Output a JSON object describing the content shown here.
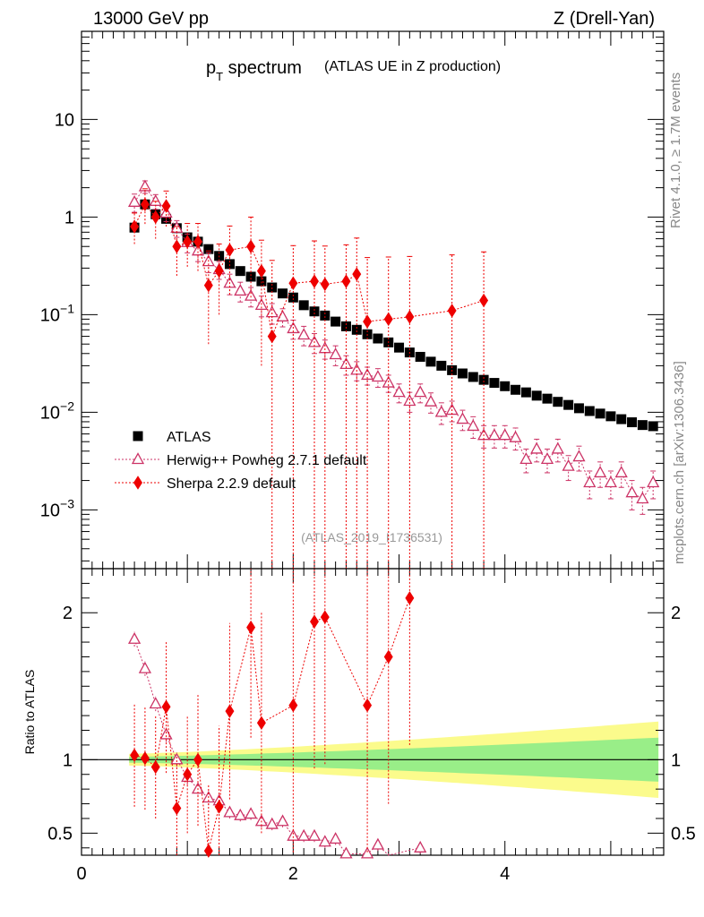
{
  "header": {
    "left": "13000 GeV pp",
    "right": "Z (Drell-Yan)"
  },
  "title": {
    "main_p": "p",
    "main_sub": "T",
    "main_rest": " spectrum",
    "paren": "(ATLAS UE in Z production)"
  },
  "side": {
    "rivet": "Rivet 4.1.0, ≥ 1.7M events",
    "mcplots": "mcplots.cern.ch [arXiv:1306.3436]"
  },
  "watermark": "(ATLAS_2019_I1736531)",
  "ratio_ylabel": "Ratio to ATLAS",
  "legend": [
    {
      "label": "ATLAS",
      "color": "#000000",
      "marker": "square"
    },
    {
      "label": "Herwig++ Powheg 2.7.1 default",
      "color": "#cc3366",
      "marker": "open-triangle"
    },
    {
      "label": "Sherpa 2.2.9 default",
      "color": "#ee0000",
      "marker": "diamond"
    }
  ],
  "chart_data": [
    {
      "type": "scatter",
      "title": "pT spectrum (ATLAS UE in Z production)",
      "xlabel": "",
      "ylabel": "",
      "yscale": "log",
      "xlim": [
        0,
        5.5
      ],
      "ylim": [
        0.00025,
        80
      ],
      "x_ticks": [
        "0",
        "2",
        "4"
      ],
      "y_ticks": [
        "10^-3",
        "10^-2",
        "10^-1",
        "1",
        "10"
      ],
      "series": [
        {
          "name": "ATLAS",
          "x": [
            0.5,
            0.6,
            0.7,
            0.8,
            0.9,
            1.0,
            1.1,
            1.2,
            1.3,
            1.4,
            1.5,
            1.6,
            1.7,
            1.8,
            1.9,
            2.0,
            2.1,
            2.2,
            2.3,
            2.4,
            2.5,
            2.6,
            2.7,
            2.8,
            2.9,
            3.0,
            3.1,
            3.2,
            3.3,
            3.4,
            3.5,
            3.6,
            3.7,
            3.8,
            3.9,
            4.0,
            4.1,
            4.2,
            4.3,
            4.4,
            4.5,
            4.6,
            4.7,
            4.8,
            4.9,
            5.0,
            5.1,
            5.2,
            5.3,
            5.4
          ],
          "y": [
            0.78,
            1.35,
            1.07,
            0.96,
            0.77,
            0.62,
            0.56,
            0.47,
            0.4,
            0.33,
            0.28,
            0.245,
            0.22,
            0.19,
            0.165,
            0.15,
            0.125,
            0.108,
            0.098,
            0.085,
            0.076,
            0.07,
            0.063,
            0.057,
            0.052,
            0.046,
            0.041,
            0.037,
            0.033,
            0.03,
            0.027,
            0.025,
            0.023,
            0.0215,
            0.02,
            0.0185,
            0.017,
            0.016,
            0.0148,
            0.0138,
            0.0128,
            0.0119,
            0.011,
            0.0103,
            0.0097,
            0.0091,
            0.0085,
            0.0079,
            0.0074,
            0.0072
          ]
        },
        {
          "name": "Herwig++ Powheg 2.7.1 default",
          "x": [
            0.5,
            0.6,
            0.7,
            0.8,
            0.9,
            1.0,
            1.1,
            1.2,
            1.3,
            1.4,
            1.5,
            1.6,
            1.7,
            1.8,
            1.9,
            2.0,
            2.1,
            2.2,
            2.3,
            2.4,
            2.5,
            2.6,
            2.7,
            2.8,
            2.9,
            3.0,
            3.1,
            3.2,
            3.3,
            3.4,
            3.5,
            3.6,
            3.7,
            3.8,
            3.9,
            4.0,
            4.1,
            4.2,
            4.3,
            4.4,
            4.5,
            4.6,
            4.7,
            4.8,
            4.9,
            5.0,
            5.1,
            5.2,
            5.3,
            5.4
          ],
          "y": [
            1.42,
            2.05,
            1.45,
            1.1,
            0.77,
            0.55,
            0.45,
            0.35,
            0.29,
            0.21,
            0.175,
            0.155,
            0.125,
            0.105,
            0.095,
            0.072,
            0.062,
            0.052,
            0.045,
            0.039,
            0.031,
            0.027,
            0.024,
            0.023,
            0.02,
            0.016,
            0.013,
            0.016,
            0.0128,
            0.01,
            0.0105,
            0.0085,
            0.0072,
            0.0058,
            0.0058,
            0.0058,
            0.0055,
            0.0033,
            0.0042,
            0.0033,
            0.0042,
            0.0028,
            0.0035,
            0.0019,
            0.0024,
            0.0019,
            0.0024,
            0.0015,
            0.0013,
            0.0019
          ],
          "y_err": [
            0.3,
            0.3,
            0.25,
            0.2,
            0.15,
            0.12,
            0.1,
            0.08,
            0.06,
            0.05,
            0.04,
            0.035,
            0.03,
            0.025,
            0.02,
            0.016,
            0.014,
            0.012,
            0.01,
            0.009,
            0.007,
            0.006,
            0.005,
            0.005,
            0.004,
            0.0035,
            0.003,
            0.0035,
            0.003,
            0.0025,
            0.0025,
            0.002,
            0.0018,
            0.0015,
            0.0015,
            0.0015,
            0.0014,
            0.0009,
            0.0011,
            0.0009,
            0.0011,
            0.0008,
            0.001,
            0.0006,
            0.0007,
            0.0006,
            0.0007,
            0.0005,
            0.0004,
            0.0006
          ]
        },
        {
          "name": "Sherpa 2.2.9 default",
          "x": [
            0.5,
            0.6,
            0.7,
            0.8,
            0.9,
            1.0,
            1.1,
            1.2,
            1.3,
            1.4,
            1.6,
            1.7,
            1.8,
            2.0,
            2.2,
            2.3,
            2.5,
            2.6,
            2.7,
            2.9,
            3.1,
            3.5,
            3.8
          ],
          "y": [
            0.8,
            1.35,
            1.0,
            1.3,
            0.5,
            0.56,
            0.56,
            0.2,
            0.28,
            0.46,
            0.5,
            0.28,
            0.06,
            0.21,
            0.22,
            0.205,
            0.22,
            0.26,
            0.085,
            0.09,
            0.095,
            0.11,
            0.14
          ],
          "y_err_low": [
            0.27,
            0.5,
            0.4,
            0.5,
            0.25,
            0.25,
            0.28,
            0.15,
            0.18,
            0.3,
            0.35,
            0.25,
            0.06,
            0.21,
            0.22,
            0.205,
            0.22,
            0.26,
            0.085,
            0.09,
            0.095,
            0.11,
            0.14
          ],
          "y_err_high": [
            0.3,
            0.6,
            0.45,
            0.55,
            0.3,
            0.3,
            0.3,
            0.25,
            0.25,
            0.35,
            0.5,
            0.3,
            0.3,
            0.3,
            0.35,
            0.3,
            0.3,
            0.35,
            0.3,
            0.3,
            0.3,
            0.3,
            0.3
          ]
        }
      ]
    },
    {
      "type": "scatter",
      "title": "",
      "xlabel": "",
      "ylabel": "Ratio to ATLAS",
      "xlim": [
        0,
        5.5
      ],
      "ylim": [
        0.35,
        2.3
      ],
      "x_ticks": [
        "0",
        "2",
        "4"
      ],
      "y_ticks": [
        "0.5",
        "1",
        "2"
      ],
      "bands": {
        "x": [
          0.45,
          5.45
        ],
        "inner_halfwidth": [
          0.02,
          0.15
        ],
        "outer_halfwidth": [
          0.04,
          0.26
        ],
        "inner_color": "#99ee88",
        "outer_color": "#fbfb8c"
      },
      "series": [
        {
          "name": "Herwig++ Powheg 2.7.1 default",
          "x": [
            0.5,
            0.6,
            0.7,
            0.8,
            0.9,
            1.0,
            1.1,
            1.2,
            1.3,
            1.4,
            1.5,
            1.6,
            1.7,
            1.8,
            1.9,
            2.0,
            2.1,
            2.2,
            2.3,
            2.4,
            2.5,
            2.7,
            2.8,
            2.9,
            3.2
          ],
          "y": [
            1.82,
            1.62,
            1.38,
            1.17,
            1.0,
            0.88,
            0.8,
            0.74,
            0.72,
            0.64,
            0.62,
            0.63,
            0.58,
            0.56,
            0.58,
            0.48,
            0.48,
            0.48,
            0.44,
            0.46,
            0.36,
            0.36,
            0.42,
            0.35,
            0.4
          ],
          "y_err": [
            0.05,
            0.05,
            0.05,
            0.05,
            0.05,
            0.05,
            0.05,
            0.05,
            0.04,
            0.04,
            0.04,
            0.04,
            0.04,
            0.04,
            0.04,
            0.04,
            0.04,
            0.04,
            0.04,
            0.04,
            0.04,
            0.04,
            0.04,
            0.04,
            0.04
          ]
        },
        {
          "name": "Sherpa 2.2.9 default",
          "x": [
            0.5,
            0.6,
            0.7,
            0.8,
            0.9,
            1.0,
            1.1,
            1.2,
            1.3,
            1.4,
            1.6,
            1.7,
            2.0,
            2.2,
            2.3,
            2.7,
            2.9,
            3.1
          ],
          "y": [
            1.03,
            1.01,
            0.95,
            1.36,
            0.67,
            0.9,
            1.0,
            0.38,
            0.68,
            1.33,
            1.9,
            1.25,
            1.37,
            1.94,
            1.97,
            1.37,
            1.7,
            2.1
          ],
          "y_err": [
            0.35,
            0.35,
            0.35,
            0.45,
            0.35,
            0.4,
            0.45,
            0.45,
            0.55,
            0.6,
            0.75,
            0.75,
            1.0,
            1.0,
            1.0,
            1.0,
            1.0,
            1.0
          ]
        }
      ]
    }
  ]
}
